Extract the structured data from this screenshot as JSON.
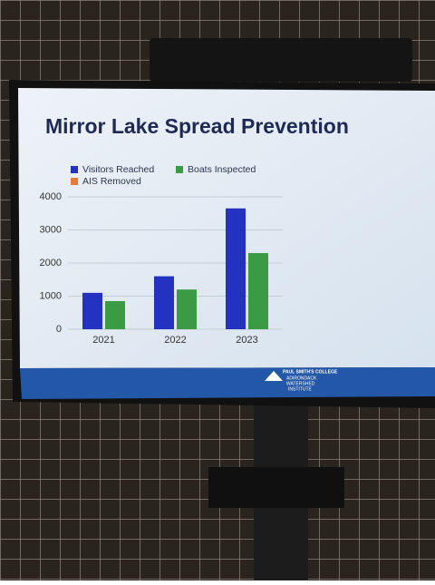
{
  "chart_data": {
    "type": "bar",
    "title": "Mirror Lake Spread Prevention",
    "categories": [
      "2021",
      "2022",
      "2023"
    ],
    "series": [
      {
        "name": "Visitors Reached",
        "color": "#2432c2",
        "values": [
          1100,
          1600,
          3650
        ]
      },
      {
        "name": "Boats Inspected",
        "color": "#3b9a44",
        "values": [
          850,
          1200,
          2300
        ]
      },
      {
        "name": "AIS Removed",
        "color": "#e8793d",
        "values": [
          0,
          0,
          0
        ]
      }
    ],
    "ylim": [
      0,
      4000
    ],
    "yticks": [
      0,
      1000,
      2000,
      3000,
      4000
    ],
    "grid": true
  },
  "logo": {
    "line1": "PAUL SMITH'S COLLEGE",
    "line2": "ADIRONDACK",
    "line3": "WATERSHED",
    "line4": "INSTITUTE"
  }
}
